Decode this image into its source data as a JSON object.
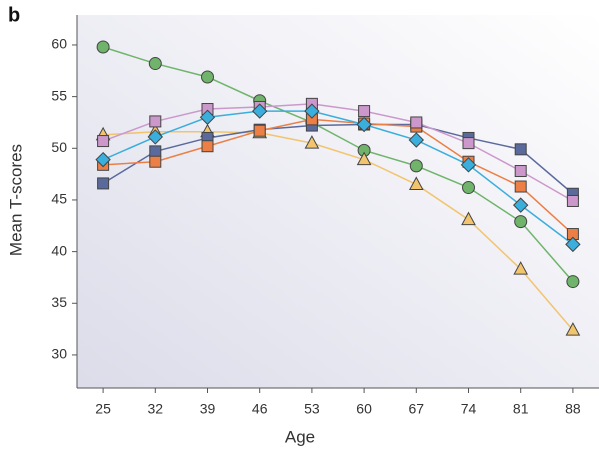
{
  "chart_data": {
    "type": "line",
    "panel_label": "b",
    "x_label": "Age",
    "y_label": "Mean T-scores",
    "x": [
      25,
      32,
      39,
      46,
      53,
      60,
      67,
      74,
      81,
      88
    ],
    "xlim": [
      21.5,
      91.5
    ],
    "xticks": [
      25,
      32,
      39,
      46,
      53,
      60,
      67,
      74,
      81,
      88
    ],
    "ylim": [
      26.8,
      62.9
    ],
    "yticks": [
      30,
      35,
      40,
      45,
      50,
      55,
      60
    ],
    "series": [
      {
        "color": "#6fb46a",
        "marker": "circle",
        "values": [
          59.8,
          58.2,
          56.9,
          54.6,
          52.5,
          49.8,
          48.3,
          46.2,
          42.9,
          37.1
        ]
      },
      {
        "color": "#f2c46e",
        "marker": "triangle",
        "values": [
          51.3,
          51.6,
          51.6,
          51.5,
          50.5,
          48.9,
          46.5,
          43.1,
          38.3,
          32.4
        ]
      },
      {
        "color": "#5a6a9c",
        "marker": "square",
        "values": [
          46.6,
          49.7,
          51.0,
          51.8,
          52.2,
          52.3,
          52.3,
          51.0,
          49.9,
          45.6
        ]
      },
      {
        "color": "#ec7f45",
        "marker": "square",
        "values": [
          48.4,
          48.7,
          50.2,
          51.7,
          52.8,
          52.4,
          52.1,
          48.7,
          46.3,
          41.7
        ]
      },
      {
        "color": "#cc98cc",
        "marker": "square",
        "values": [
          50.7,
          52.6,
          53.8,
          54.0,
          54.3,
          53.6,
          52.5,
          50.5,
          47.8,
          44.9
        ]
      },
      {
        "color": "#3aaedc",
        "marker": "diamond",
        "values": [
          48.9,
          51.1,
          53.0,
          53.6,
          53.6,
          52.3,
          50.8,
          48.4,
          44.5,
          40.7
        ]
      }
    ]
  }
}
